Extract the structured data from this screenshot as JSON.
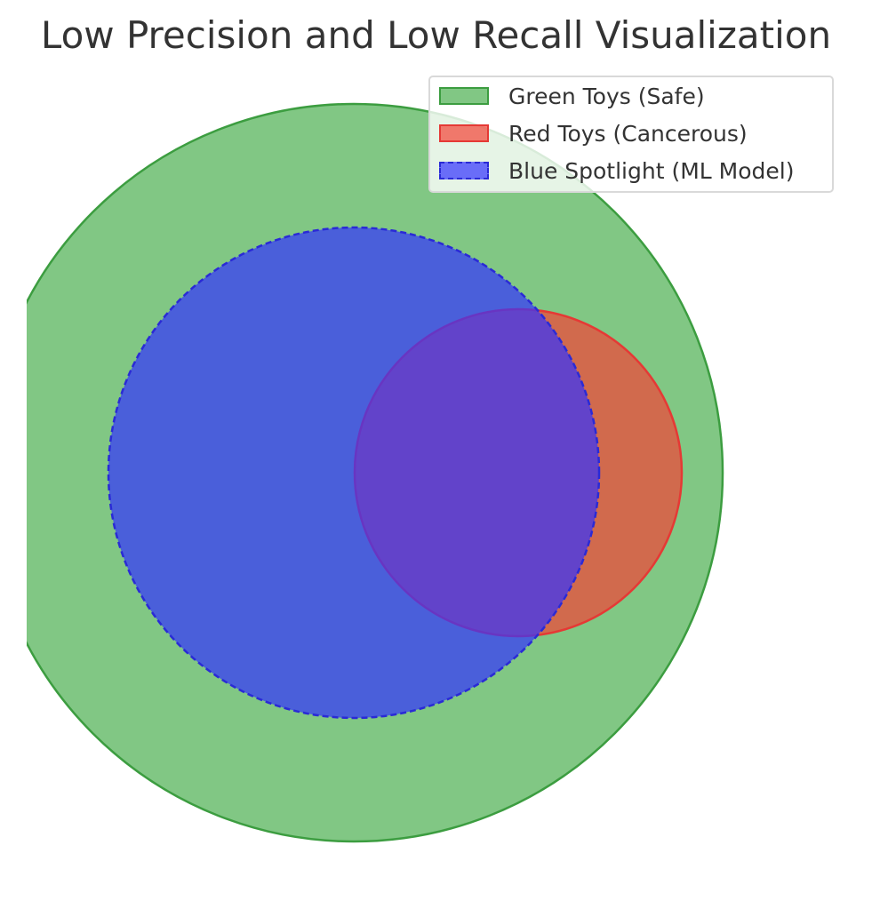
{
  "title": "Low Precision and Low Recall Visualization",
  "sets": [
    {
      "key": "green",
      "label": "Green Toys (Safe)",
      "fill": "#4caf50",
      "stroke": "#3c9d40",
      "opacity": 0.7,
      "dashed": false
    },
    {
      "key": "red",
      "label": "Red Toys (Cancerous)",
      "fill": "#f44336",
      "stroke": "#e53935",
      "opacity": 0.7,
      "dashed": false
    },
    {
      "key": "blue",
      "label": "Blue Spotlight (ML Model)",
      "fill": "#3333ff",
      "stroke": "#2a2ad6",
      "opacity": 0.7,
      "dashed": true
    }
  ]
}
